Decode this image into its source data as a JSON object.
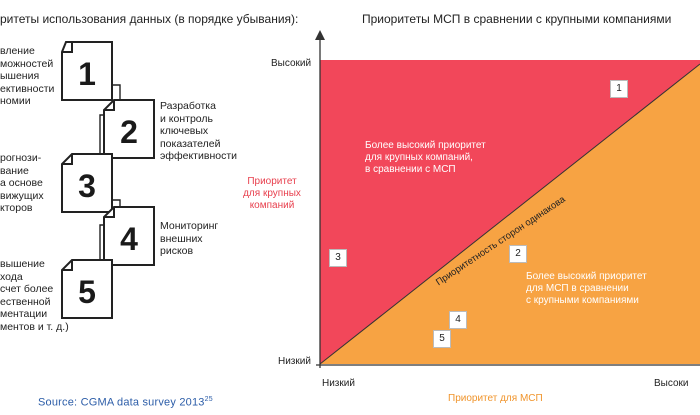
{
  "left_panel": {
    "title": "ритеты использования данных (в порядке убывания):",
    "items": [
      {
        "number": "1",
        "text": "вление\nможностей\nышения\nективности\nномии"
      },
      {
        "number": "2",
        "text": "Разработка\nи контроль\nключевых\nпоказателей\nэффективности"
      },
      {
        "number": "3",
        "text": "рогнози-\nвание\nа основе\nвижущих\nкторов"
      },
      {
        "number": "4",
        "text": "Мониторинг\nвнешних\nрисков"
      },
      {
        "number": "5",
        "text": "вышение\nхода\nсчет более\nественной\nментации\nментов и т. д.)"
      }
    ],
    "source": "Source: CGMA data survey 2013",
    "source_ref": "25"
  },
  "right_panel": {
    "title": "Приоритеты МСП в сравнении с крупными компаниями",
    "y_axis_label": "Приоритет\nдля крупных\nкомпаний",
    "x_axis_label": "Приоритет для МСП",
    "y_high": "Высокий",
    "y_low": "Низкий",
    "x_low": "Низкий",
    "x_high": "Высоки",
    "upper_zone_text": "Более высокий приоритет\nдля крупных компаний,\nв сравнении с МСП",
    "lower_zone_text": "Более высокий приоритет\nдля МСП в сравнении\nс крупными компаниями",
    "diagonal_label": "Приоритетность сторон одинакова",
    "badges": [
      "1",
      "2",
      "3",
      "4",
      "5"
    ],
    "colors": {
      "upper": "#f2475a",
      "lower": "#f7a343"
    }
  }
}
